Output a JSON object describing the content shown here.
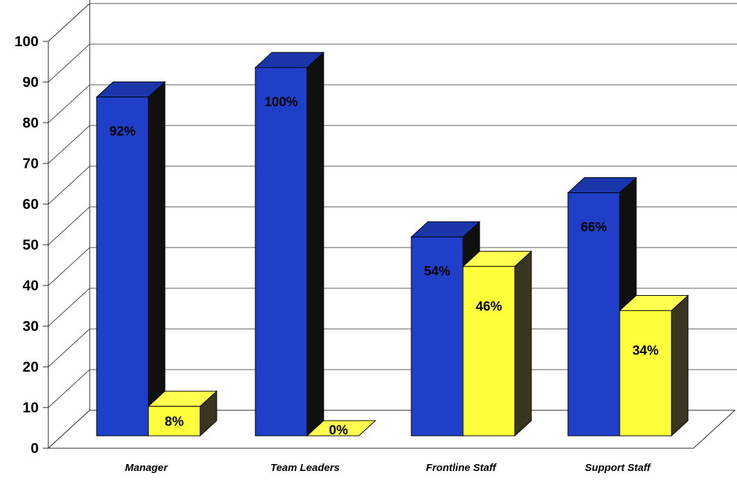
{
  "chart_data": {
    "type": "bar",
    "categories": [
      "Manager",
      "Team Leaders",
      "Frontline Staff",
      "Support Staff"
    ],
    "series": [
      {
        "values": [
          92,
          100,
          54,
          66
        ],
        "labels": [
          "92%",
          "100%",
          "54%",
          "66%"
        ],
        "color": "#1f3fc8"
      },
      {
        "values": [
          8,
          0,
          46,
          34
        ],
        "labels": [
          "8%",
          "0%",
          "46%",
          "34%"
        ],
        "color": "#ffff3c"
      }
    ],
    "ylim": [
      0,
      100
    ],
    "yticks": [
      "0",
      "10",
      "20",
      "30",
      "40",
      "50",
      "60",
      "70",
      "80",
      "90",
      "100"
    ],
    "grid": true,
    "legend": "none",
    "style": "3d"
  }
}
